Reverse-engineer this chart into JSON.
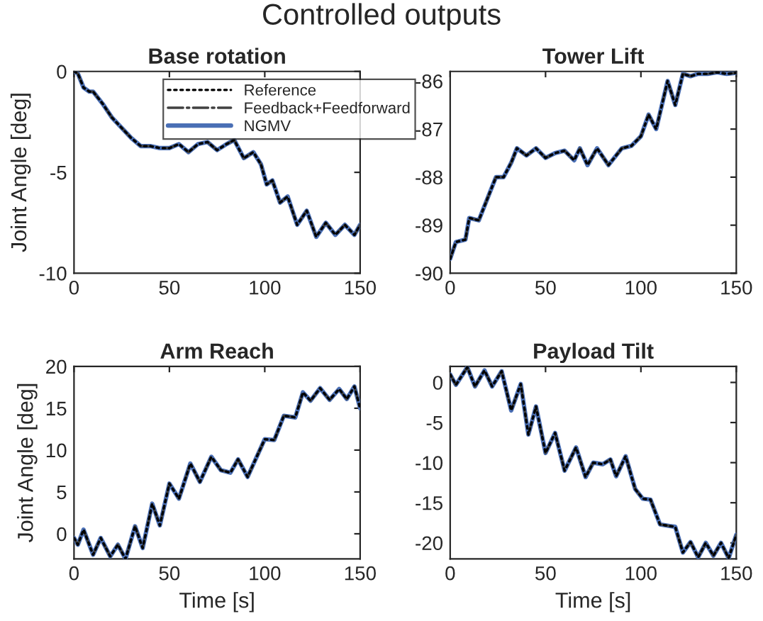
{
  "chart_data": [
    {
      "type": "line",
      "title": "Base rotation",
      "ylabel": "Joint Angle [deg]",
      "annotations": [
        "Controlled outputs"
      ],
      "legend": "top right",
      "xlim": [
        0,
        150
      ],
      "xticks": [
        0,
        50,
        100,
        150
      ],
      "ylim": [
        -10,
        0
      ],
      "yticks": [
        -10,
        -5,
        0
      ],
      "x": [
        0,
        2,
        5,
        8,
        10,
        15,
        20,
        25,
        30,
        35,
        40,
        45,
        50,
        55,
        60,
        65,
        70,
        75,
        80,
        84,
        89,
        94,
        98,
        101,
        104,
        108,
        112,
        117,
        122,
        127,
        132,
        137,
        142,
        147,
        150
      ],
      "series": [
        {
          "name": "Reference",
          "color": "#000000",
          "line_style": "dotted",
          "values": [
            0,
            -0.1,
            -0.8,
            -1.0,
            -1.0,
            -1.6,
            -2.3,
            -2.8,
            -3.3,
            -3.7,
            -3.7,
            -3.8,
            -3.8,
            -3.6,
            -4.0,
            -3.6,
            -3.5,
            -3.9,
            -3.6,
            -3.4,
            -4.3,
            -4.0,
            -4.6,
            -5.6,
            -5.4,
            -6.5,
            -6.2,
            -7.6,
            -6.9,
            -8.2,
            -7.5,
            -8.1,
            -7.6,
            -8.1,
            -7.6
          ]
        },
        {
          "name": "Feedback+Feedforward",
          "color": "#404040",
          "line_style": "dashdot",
          "values": [
            0,
            -0.1,
            -0.8,
            -1.0,
            -1.0,
            -1.6,
            -2.3,
            -2.8,
            -3.3,
            -3.7,
            -3.7,
            -3.8,
            -3.8,
            -3.6,
            -4.0,
            -3.6,
            -3.5,
            -3.9,
            -3.6,
            -3.4,
            -4.3,
            -4.0,
            -4.6,
            -5.6,
            -5.4,
            -6.5,
            -6.2,
            -7.6,
            -6.9,
            -8.2,
            -7.5,
            -8.1,
            -7.6,
            -8.1,
            -7.6
          ]
        },
        {
          "name": "NGMV",
          "color": "#4a6fb5",
          "line_style": "solid",
          "values": [
            0,
            -0.1,
            -0.8,
            -1.0,
            -1.0,
            -1.6,
            -2.3,
            -2.8,
            -3.3,
            -3.7,
            -3.7,
            -3.8,
            -3.8,
            -3.6,
            -4.0,
            -3.6,
            -3.5,
            -3.9,
            -3.6,
            -3.4,
            -4.3,
            -4.0,
            -4.6,
            -5.6,
            -5.4,
            -6.5,
            -6.2,
            -7.6,
            -6.9,
            -8.2,
            -7.5,
            -8.1,
            -7.6,
            -8.1,
            -7.6
          ]
        }
      ]
    },
    {
      "type": "line",
      "title": "Tower Lift",
      "xlim": [
        0,
        150
      ],
      "xticks": [
        0,
        50,
        100,
        150
      ],
      "ylim": [
        -90,
        -85.8
      ],
      "yticks": [
        -90,
        -89,
        -88,
        -87,
        -86
      ],
      "x": [
        0,
        3,
        5,
        8,
        10,
        15,
        20,
        24,
        28,
        32,
        35,
        40,
        45,
        50,
        55,
        60,
        65,
        68,
        72,
        77,
        83,
        90,
        95,
        100,
        104,
        108,
        114,
        118,
        122,
        126,
        130,
        135,
        140,
        145,
        150
      ],
      "series": [
        {
          "color": "#000000",
          "line_style": "dotted",
          "values": [
            -89.7,
            -89.35,
            null,
            -89.3,
            -88.85,
            -88.9,
            -88.4,
            -88.0,
            -88.0,
            -87.7,
            -87.4,
            -87.55,
            -87.4,
            -87.6,
            -87.5,
            -87.45,
            -87.65,
            -87.4,
            -87.75,
            -87.4,
            -87.75,
            -87.4,
            -87.35,
            -87.15,
            -86.7,
            -87.0,
            -86.0,
            -86.5,
            -85.85,
            -85.9,
            -85.85,
            -85.85,
            -85.82,
            -85.85,
            -85.83
          ]
        },
        {
          "color": "#404040",
          "line_style": "dashdot",
          "values": [
            -89.7,
            -89.35,
            null,
            -89.3,
            -88.85,
            -88.9,
            -88.4,
            -88.0,
            -88.0,
            -87.7,
            -87.4,
            -87.55,
            -87.4,
            -87.6,
            -87.5,
            -87.45,
            -87.65,
            -87.4,
            -87.75,
            -87.4,
            -87.75,
            -87.4,
            -87.35,
            -87.15,
            -86.7,
            -87.0,
            -86.0,
            -86.5,
            -85.85,
            -85.9,
            -85.85,
            -85.85,
            -85.82,
            -85.85,
            -85.83
          ]
        },
        {
          "color": "#4a6fb5",
          "line_style": "solid",
          "values": [
            -89.7,
            -89.35,
            null,
            -89.3,
            -88.85,
            -88.9,
            -88.4,
            -88.0,
            -88.0,
            -87.7,
            -87.4,
            -87.55,
            -87.4,
            -87.6,
            -87.5,
            -87.45,
            -87.65,
            -87.4,
            -87.75,
            -87.4,
            -87.75,
            -87.4,
            -87.35,
            -87.15,
            -86.7,
            -87.0,
            -86.0,
            -86.5,
            -85.85,
            -85.9,
            -85.85,
            -85.85,
            -85.82,
            -85.85,
            -85.83
          ]
        }
      ]
    },
    {
      "type": "line",
      "title": "Arm Reach",
      "xlabel": "Time [s]",
      "ylabel": "Joint Angle [deg]",
      "xlim": [
        0,
        150
      ],
      "xticks": [
        0,
        50,
        100,
        150
      ],
      "ylim": [
        -3,
        20
      ],
      "yticks": [
        0,
        5,
        10,
        15,
        20
      ],
      "x": [
        0,
        2,
        5,
        10,
        14,
        19,
        23,
        27,
        32,
        36,
        41,
        45,
        50,
        55,
        61,
        66,
        72,
        77,
        82,
        86,
        91,
        100,
        105,
        110,
        116,
        120,
        124,
        129,
        134,
        139,
        143,
        147,
        150
      ],
      "series": [
        {
          "color": "#000000",
          "line_style": "dotted",
          "values": [
            -0.5,
            -1.3,
            0.5,
            -2.5,
            -0.5,
            -2.7,
            -1.3,
            -3.0,
            0.9,
            -1.7,
            3.6,
            1.0,
            6.0,
            4.2,
            8.4,
            6.2,
            9.2,
            7.6,
            7.3,
            8.9,
            6.8,
            11.3,
            11.2,
            14.1,
            13.9,
            16.9,
            15.9,
            17.4,
            16.0,
            17.3,
            16.1,
            17.6,
            15.0
          ]
        },
        {
          "color": "#404040",
          "line_style": "dashdot",
          "values": [
            -0.5,
            -1.3,
            0.5,
            -2.5,
            -0.5,
            -2.7,
            -1.3,
            -3.0,
            0.9,
            -1.7,
            3.6,
            1.0,
            6.0,
            4.2,
            8.4,
            6.2,
            9.2,
            7.6,
            7.3,
            8.9,
            6.8,
            11.3,
            11.2,
            14.1,
            13.9,
            16.9,
            15.9,
            17.4,
            16.0,
            17.3,
            16.1,
            17.6,
            15.0
          ]
        },
        {
          "color": "#4a6fb5",
          "line_style": "solid",
          "values": [
            -0.5,
            -1.3,
            0.5,
            -2.5,
            -0.5,
            -2.7,
            -1.3,
            -3.0,
            0.9,
            -1.7,
            3.6,
            1.0,
            6.0,
            4.2,
            8.4,
            6.2,
            9.2,
            7.6,
            7.3,
            8.9,
            6.8,
            11.3,
            11.2,
            14.1,
            13.9,
            16.9,
            15.9,
            17.4,
            16.0,
            17.3,
            16.1,
            17.6,
            15.0
          ]
        }
      ]
    },
    {
      "type": "line",
      "title": "Payload Tilt",
      "xlabel": "Time [s]",
      "xlim": [
        0,
        150
      ],
      "xticks": [
        0,
        50,
        100,
        150
      ],
      "ylim": [
        -22,
        2
      ],
      "yticks": [
        -20,
        -15,
        -10,
        -5,
        0
      ],
      "x": [
        0,
        3,
        9,
        13,
        18,
        22,
        27,
        32,
        37,
        41,
        45,
        50,
        55,
        60,
        66,
        71,
        75,
        80,
        84,
        87,
        92,
        97,
        101,
        105,
        110,
        115,
        118,
        122,
        126,
        130,
        134,
        138,
        142,
        146,
        150
      ],
      "series": [
        {
          "color": "#000000",
          "line_style": "dotted",
          "values": [
            1.0,
            -0.3,
            1.9,
            -0.5,
            1.5,
            -0.5,
            1.4,
            -3.5,
            -0.2,
            -6.5,
            -3.0,
            -8.8,
            -6.3,
            -11.0,
            -8.1,
            -11.8,
            -10.0,
            -10.2,
            -9.6,
            -11.7,
            -9.2,
            -13.3,
            -14.5,
            -14.6,
            -17.7,
            -17.9,
            -18.0,
            -21.2,
            -19.9,
            -21.8,
            -20.0,
            -21.6,
            -20.0,
            -21.9,
            -19.0
          ]
        },
        {
          "color": "#404040",
          "line_style": "dashdot",
          "values": [
            1.0,
            -0.3,
            1.9,
            -0.5,
            1.5,
            -0.5,
            1.4,
            -3.5,
            -0.2,
            -6.5,
            -3.0,
            -8.8,
            -6.3,
            -11.0,
            -8.1,
            -11.8,
            -10.0,
            -10.2,
            -9.6,
            -11.7,
            -9.2,
            -13.3,
            -14.5,
            -14.6,
            -17.7,
            -17.9,
            -18.0,
            -21.2,
            -19.9,
            -21.8,
            -20.0,
            -21.6,
            -20.0,
            -21.9,
            -19.0
          ]
        },
        {
          "color": "#4a6fb5",
          "line_style": "solid",
          "values": [
            1.0,
            -0.3,
            1.9,
            -0.5,
            1.5,
            -0.5,
            1.4,
            -3.5,
            -0.2,
            -6.5,
            -3.0,
            -8.8,
            -6.3,
            -11.0,
            -8.1,
            -11.8,
            -10.0,
            -10.2,
            -9.6,
            -11.7,
            -9.2,
            -13.3,
            -14.5,
            -14.6,
            -17.7,
            -17.9,
            -18.0,
            -21.2,
            -19.9,
            -21.8,
            -20.0,
            -21.6,
            -20.0,
            -21.9,
            -19.0
          ]
        }
      ]
    }
  ]
}
